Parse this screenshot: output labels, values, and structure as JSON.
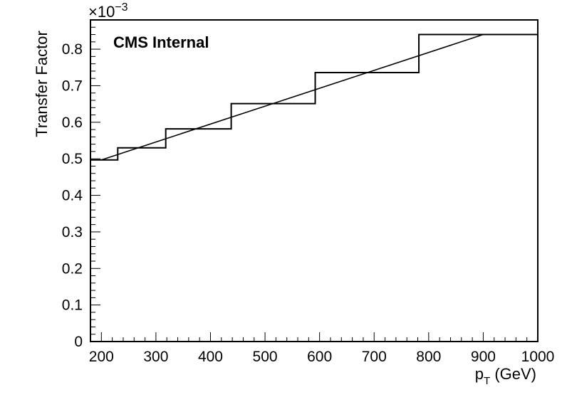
{
  "chart_data": {
    "type": "line",
    "label": "CMS Internal",
    "xlabel_main": "p",
    "xlabel_sub": "T",
    "xlabel_rest": " (GeV)",
    "ylabel": "Transfer Factor",
    "yexponent_base": "×10",
    "yexponent_power": "−3",
    "xlim": [
      180,
      1000
    ],
    "ylim": [
      0,
      0.88
    ],
    "x_ticks": [
      200,
      300,
      400,
      500,
      600,
      700,
      800,
      900,
      1000
    ],
    "y_ticks": [
      0,
      0.1,
      0.2,
      0.3,
      0.4,
      0.5,
      0.6,
      0.7,
      0.8
    ],
    "y_tick_labels": [
      "0",
      "0.1",
      "0.2",
      "0.3",
      "0.4",
      "0.5",
      "0.6",
      "0.7",
      "0.8"
    ],
    "grid": false,
    "series": [
      {
        "style": "step",
        "bin_edges": [
          180,
          230,
          318,
          438,
          592,
          782,
          1000
        ],
        "values": [
          0.497,
          0.53,
          0.582,
          0.651,
          0.736,
          0.84
        ]
      },
      {
        "style": "line",
        "x": [
          200,
          900
        ],
        "y": [
          0.497,
          0.84
        ]
      }
    ]
  }
}
